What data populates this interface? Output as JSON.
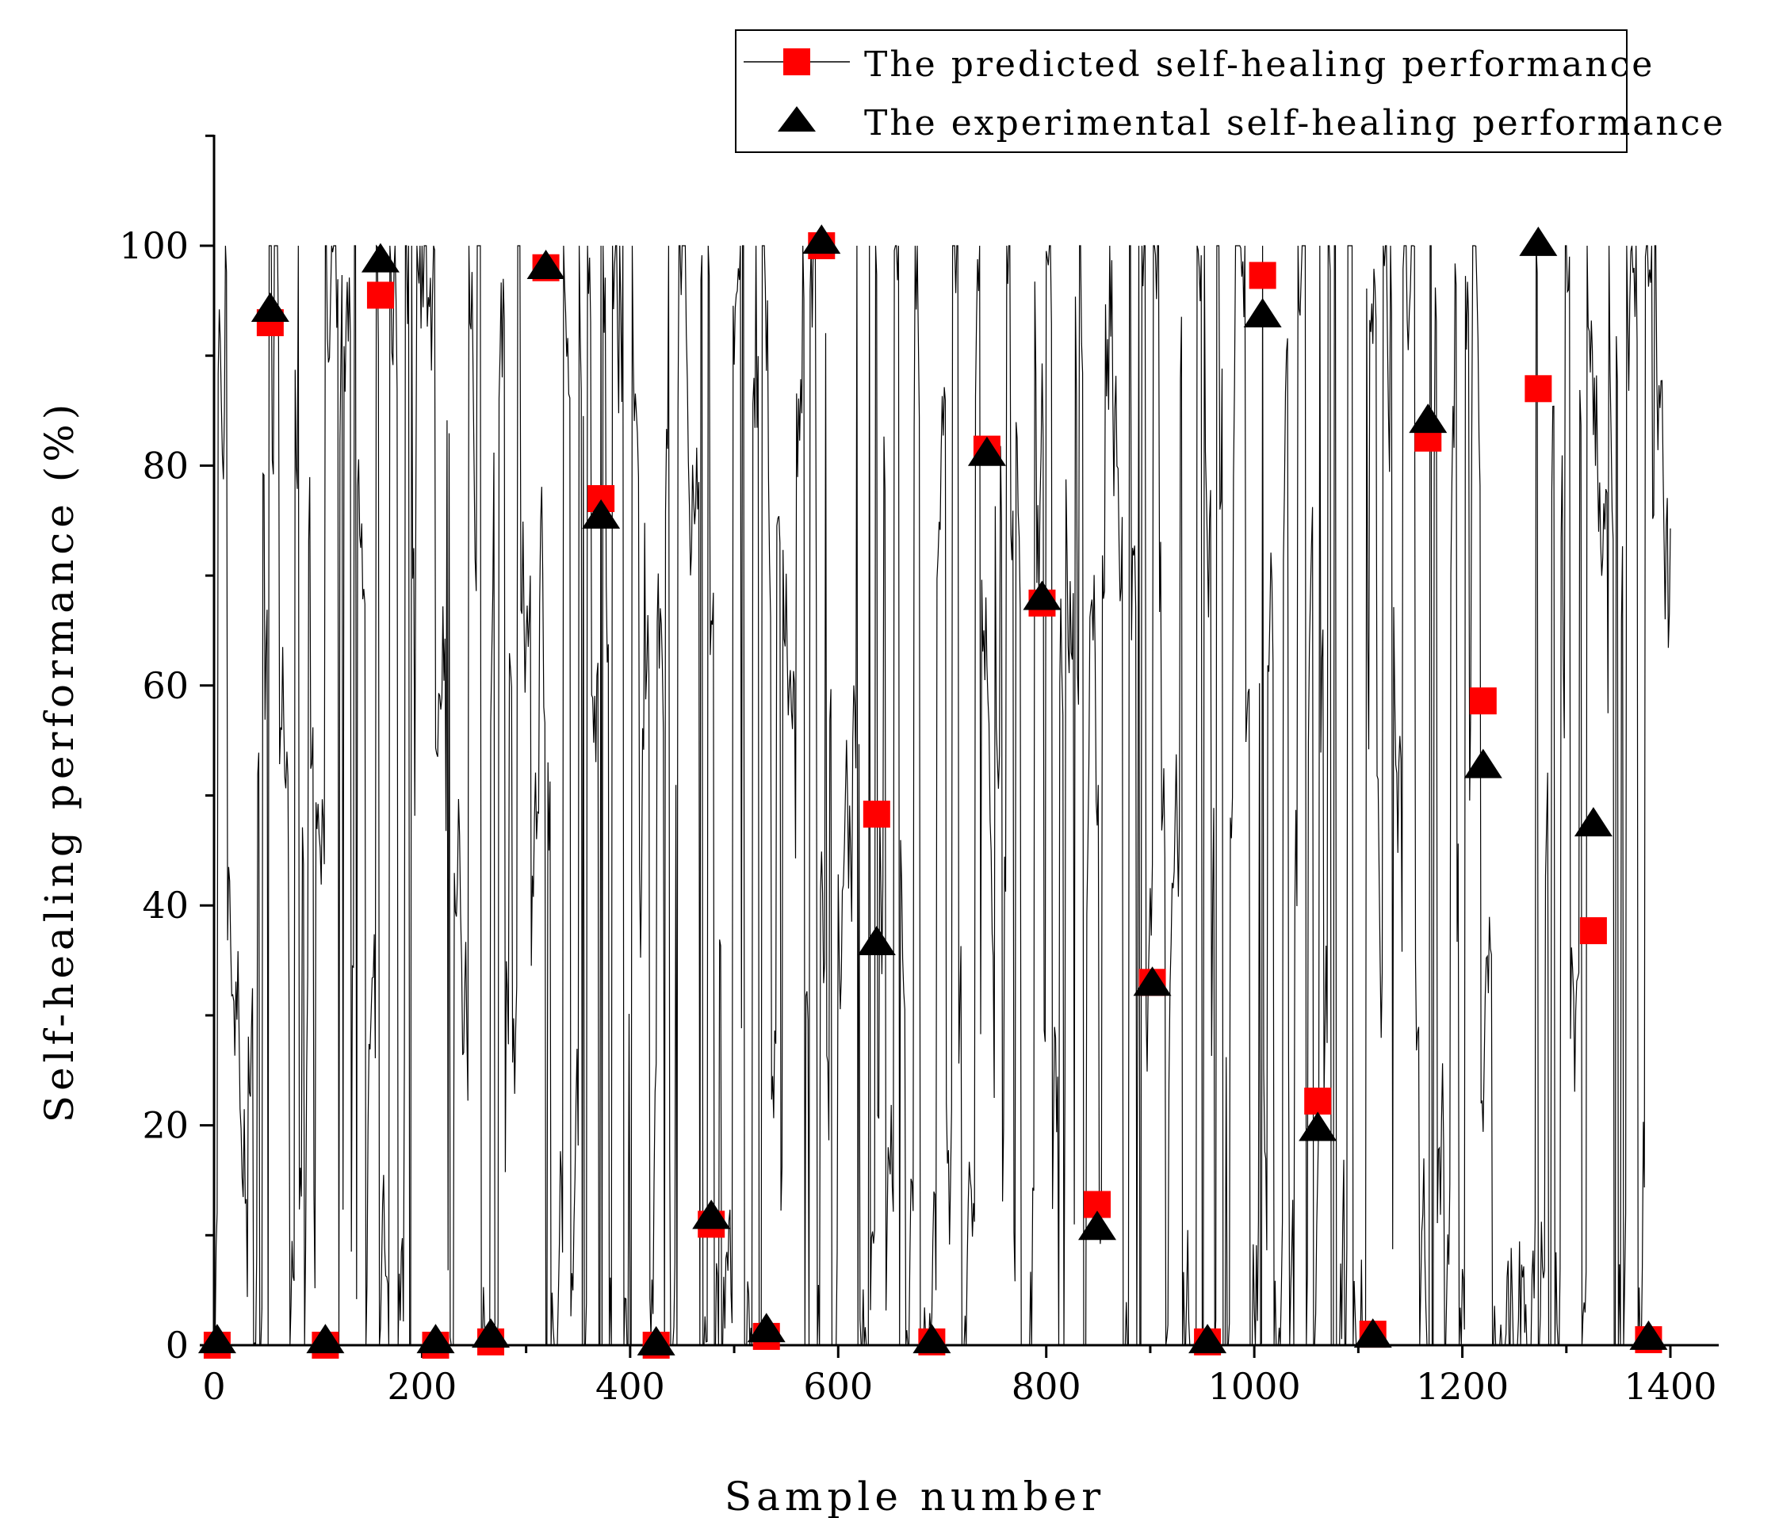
{
  "chart_data": {
    "type": "scatter",
    "title": "",
    "xlabel": "Sample number",
    "ylabel": "Self-healing performance (%)",
    "xlim": [
      0,
      1450
    ],
    "ylim": [
      0,
      110
    ],
    "x_ticks": [
      0,
      200,
      400,
      600,
      800,
      1000,
      1200,
      1400
    ],
    "y_ticks": [
      0,
      20,
      40,
      60,
      80,
      100
    ],
    "grid": false,
    "legend_position": "top-right",
    "legend": [
      "The predicted self-healing performance",
      "The experimental self-healing performance"
    ],
    "series": [
      {
        "name": "The predicted self-healing performance",
        "marker": "square",
        "color": "#ff0000",
        "x": [
          3,
          54,
          107,
          160,
          213,
          266,
          319,
          372,
          425,
          478,
          531,
          584,
          637,
          690,
          743,
          796,
          849,
          902,
          955,
          1008,
          1061,
          1114,
          1167,
          1220,
          1273,
          1326,
          1379
        ],
        "y": [
          0,
          93,
          0,
          95.5,
          0,
          0.3,
          98,
          77,
          0,
          11,
          0.8,
          100,
          48.3,
          0.3,
          81.5,
          67.5,
          12.8,
          33,
          0.3,
          97.3,
          22.2,
          1,
          82.5,
          58.6,
          87,
          37.7,
          0.5
        ]
      },
      {
        "name": "The experimental self-healing performance",
        "marker": "triangle",
        "color": "#000000",
        "x": [
          3,
          54,
          107,
          160,
          213,
          266,
          319,
          372,
          425,
          478,
          531,
          584,
          637,
          690,
          743,
          796,
          849,
          902,
          955,
          1008,
          1061,
          1114,
          1167,
          1220,
          1273,
          1326,
          1379
        ],
        "y": [
          0.5,
          94.3,
          0.5,
          98.8,
          0.5,
          1,
          98.2,
          75.5,
          0.3,
          11.8,
          1.5,
          100.5,
          36.7,
          0.5,
          81.2,
          68.1,
          10.8,
          33,
          0.5,
          93.8,
          19.8,
          1,
          84.2,
          52.8,
          100.3,
          47.5,
          0.8
        ]
      }
    ],
    "line_series": {
      "name": "The predicted self-healing performance",
      "color": "#000000",
      "x_range": [
        1,
        1400
      ],
      "y_range": [
        0,
        100
      ],
      "n_points": 1400
    }
  }
}
